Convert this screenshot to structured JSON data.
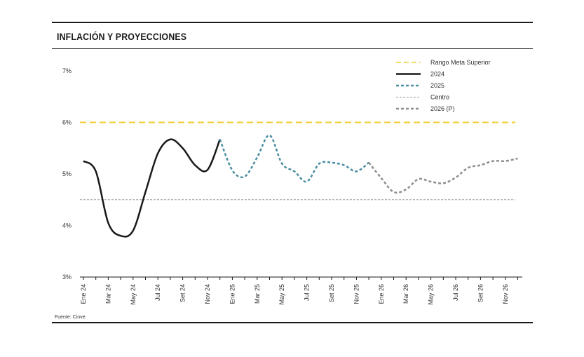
{
  "header": {
    "title": "INFLACIÓN Y PROYECCIONES"
  },
  "footer": {
    "source": "Fuente: Cinve."
  },
  "chart_data": {
    "type": "line",
    "title": "INFLACIÓN Y PROYECCIONES",
    "xlabel": "",
    "ylabel": "",
    "ylim": [
      3,
      7
    ],
    "y_ticks": [
      "3%",
      "4%",
      "5%",
      "6%",
      "7%"
    ],
    "y_tick_values": [
      3,
      4,
      5,
      6,
      7
    ],
    "x_tick_labels": [
      "Ene 24",
      "Mar 24",
      "May 24",
      "Jul 24",
      "Set 24",
      "Nov 24",
      "Ene 25",
      "Mar 25",
      "May 25",
      "Jul 25",
      "Set 25",
      "Nov 25",
      "Ene 26",
      "Mar 26",
      "May 26",
      "Jul 26",
      "Set 26",
      "Nov 26"
    ],
    "x_tick_values": [
      "2024-01",
      "2024-03",
      "2024-05",
      "2024-07",
      "2024-09",
      "2024-11",
      "2025-01",
      "2025-03",
      "2025-05",
      "2025-07",
      "2025-09",
      "2025-11",
      "2026-01",
      "2026-03",
      "2026-05",
      "2026-07",
      "2026-09",
      "2026-11"
    ],
    "xlim": [
      "2024-01",
      "2026-12"
    ],
    "grid": false,
    "legend": "top-right",
    "reference_lines": [
      {
        "name": "Rango Meta Superior",
        "value": 6.0,
        "color": "#f2cc2e"
      },
      {
        "name": "Centro",
        "value": 4.5,
        "color": "#9a9a9a"
      }
    ],
    "series": [
      {
        "name": "2024",
        "color": "#1a1a1a",
        "x": [
          "2024-01",
          "2024-02",
          "2024-03",
          "2024-04",
          "2024-05",
          "2024-06",
          "2024-07",
          "2024-08",
          "2024-09",
          "2024-10",
          "2024-11",
          "2024-12"
        ],
        "values": [
          5.25,
          5.05,
          4.05,
          3.8,
          3.9,
          4.65,
          5.4,
          5.67,
          5.5,
          5.17,
          5.08,
          5.67
        ]
      },
      {
        "name": "2025",
        "color": "#4a8ea1",
        "x": [
          "2024-12",
          "2025-01",
          "2025-02",
          "2025-03",
          "2025-04",
          "2025-05",
          "2025-06",
          "2025-07",
          "2025-08",
          "2025-09",
          "2025-10",
          "2025-11",
          "2025-12"
        ],
        "values": [
          5.67,
          5.07,
          4.95,
          5.32,
          5.75,
          5.2,
          5.05,
          4.85,
          5.2,
          5.22,
          5.17,
          5.05,
          5.22
        ]
      },
      {
        "name": "2026 (P)",
        "color": "#8e8e8e",
        "x": [
          "2025-12",
          "2026-01",
          "2026-02",
          "2026-03",
          "2026-04",
          "2026-05",
          "2026-06",
          "2026-07",
          "2026-08",
          "2026-09",
          "2026-10",
          "2026-11",
          "2026-12"
        ],
        "values": [
          5.22,
          4.92,
          4.65,
          4.7,
          4.9,
          4.85,
          4.82,
          4.93,
          5.12,
          5.17,
          5.25,
          5.25,
          5.3
        ]
      }
    ]
  }
}
